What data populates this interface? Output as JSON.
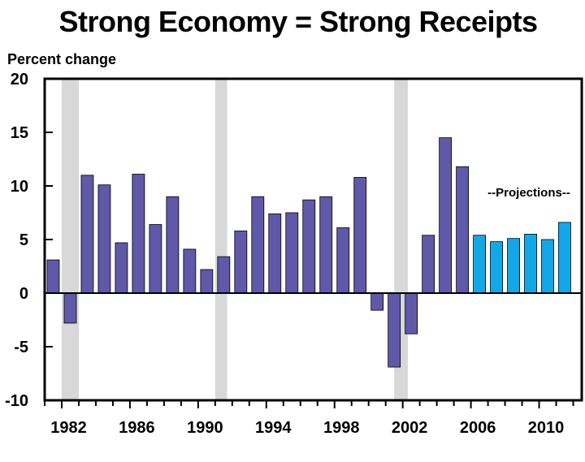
{
  "chart_data": {
    "type": "bar",
    "title": "Strong Economy = Strong Receipts",
    "ylabel": "Percent change",
    "xlabel": "",
    "ylim": [
      -10,
      20
    ],
    "yticks": [
      20,
      15,
      10,
      5,
      0,
      -5,
      -10
    ],
    "xtick_labels": [
      "1982",
      "1986",
      "1990",
      "1994",
      "1998",
      "2002",
      "2006",
      "2010"
    ],
    "annotation": "--Projections--",
    "colors": {
      "actual": "#6058a8",
      "projection": "#12a8e8",
      "recession": "#d8d8d8"
    },
    "recessions": [
      [
        1981.5,
        1982.5
      ],
      [
        1990.5,
        1991.2
      ],
      [
        2001.0,
        2001.8
      ]
    ],
    "series": [
      {
        "values": [
          {
            "x": 1981,
            "y": 3.1
          },
          {
            "x": 1982,
            "y": -2.8
          },
          {
            "x": 1983,
            "y": 11.0
          },
          {
            "x": 1984,
            "y": 10.1
          },
          {
            "x": 1985,
            "y": 4.7
          },
          {
            "x": 1986,
            "y": 11.1
          },
          {
            "x": 1987,
            "y": 6.4
          },
          {
            "x": 1988,
            "y": 9.0
          },
          {
            "x": 1989,
            "y": 4.1
          },
          {
            "x": 1990,
            "y": 2.2
          },
          {
            "x": 1991,
            "y": 3.4
          },
          {
            "x": 1992,
            "y": 5.8
          },
          {
            "x": 1993,
            "y": 9.0
          },
          {
            "x": 1994,
            "y": 7.4
          },
          {
            "x": 1995,
            "y": 7.5
          },
          {
            "x": 1996,
            "y": 8.7
          },
          {
            "x": 1997,
            "y": 9.0
          },
          {
            "x": 1998,
            "y": 6.1
          },
          {
            "x": 1999,
            "y": 10.8
          },
          {
            "x": 2000,
            "y": -1.6
          },
          {
            "x": 2001,
            "y": -6.9
          },
          {
            "x": 2002,
            "y": -3.8
          },
          {
            "x": 2003,
            "y": 5.4
          },
          {
            "x": 2004,
            "y": 14.5
          },
          {
            "x": 2005,
            "y": 11.8
          }
        ]
      },
      {
        "values": [
          {
            "x": 2006,
            "y": 5.4
          },
          {
            "x": 2007,
            "y": 4.8
          },
          {
            "x": 2008,
            "y": 5.1
          },
          {
            "x": 2009,
            "y": 5.5
          },
          {
            "x": 2010,
            "y": 5.0
          },
          {
            "x": 2011,
            "y": 6.6
          }
        ]
      }
    ]
  }
}
